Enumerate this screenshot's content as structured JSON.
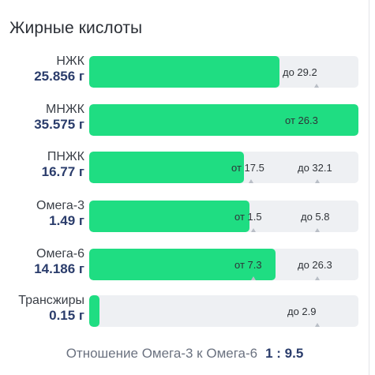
{
  "title": "Жирные кислоты",
  "colors": {
    "fill": "#1fdd82",
    "track": "#eef0f3",
    "value": "#2a3c6b"
  },
  "rows": [
    {
      "name": "НЖК",
      "value": "25.856 г",
      "fill_pct": 70,
      "min": "",
      "max": "до 29.2"
    },
    {
      "name": "МНЖК",
      "value": "35.575 г",
      "fill_pct": 100,
      "min": "от 26.3",
      "max": ""
    },
    {
      "name": "ПНЖК",
      "value": "16.77 г",
      "fill_pct": 57,
      "min": "от 17.5",
      "max": "до 32.1"
    },
    {
      "name": "Омега-3",
      "value": "1.49 г",
      "fill_pct": 60,
      "min": "от 1.5",
      "max": "до 5.8"
    },
    {
      "name": "Омега-6",
      "value": "14.186 г",
      "fill_pct": 69,
      "min": "от 7.3",
      "max": "до 26.3"
    },
    {
      "name": "Трансжиры",
      "value": "0.15 г",
      "fill_pct": 4,
      "min": "",
      "max": "до 2.9"
    }
  ],
  "footer": {
    "label": "Отношение Омега-3 к Омега-6",
    "ratio": "1 : 9.5"
  }
}
